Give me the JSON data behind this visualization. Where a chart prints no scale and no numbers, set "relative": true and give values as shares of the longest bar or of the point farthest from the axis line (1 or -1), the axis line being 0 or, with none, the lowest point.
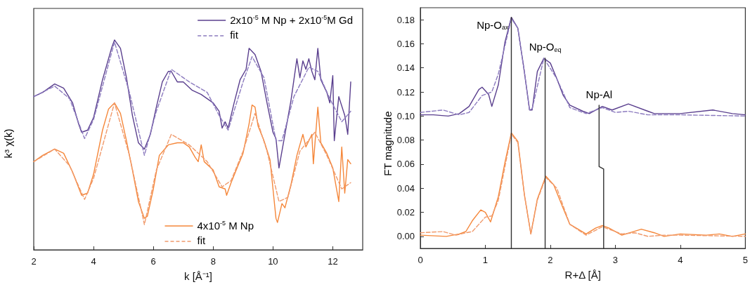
{
  "chart_data": [
    {
      "type": "line",
      "relative": true,
      "xlabel": "k [Å⁻¹]",
      "ylabel": "k³ χ(k)",
      "xlim": [
        2,
        13
      ],
      "xticks": [
        2,
        4,
        6,
        8,
        10,
        12
      ],
      "legend": "top right",
      "marker": "none",
      "series": [
        {
          "name": "2x10$^{-5}$ M Np + 2x10$^{-5}$M Gd",
          "color": "#5a3f8e",
          "line_style": "solid",
          "x": [
            2,
            2.3,
            2.7,
            3.0,
            3.3,
            3.5,
            3.6,
            3.8,
            4.0,
            4.3,
            4.6,
            4.7,
            4.9,
            5.1,
            5.3,
            5.5,
            5.7,
            5.9,
            6.1,
            6.3,
            6.5,
            6.6,
            6.8,
            7.0,
            7.3,
            7.6,
            7.8,
            8.0,
            8.2,
            8.3,
            8.4,
            8.5,
            8.7,
            8.9,
            9.1,
            9.2,
            9.4,
            9.6,
            9.8,
            10.0,
            10.1,
            10.2,
            10.4,
            10.6,
            10.7,
            10.8,
            10.9,
            11.0,
            11.1,
            11.2,
            11.3,
            11.4,
            11.5,
            11.6,
            11.8,
            11.9,
            12.0,
            12.05,
            12.2,
            12.4,
            12.5,
            12.6
          ],
          "values": [
            0.73,
            0.75,
            0.79,
            0.77,
            0.7,
            0.6,
            0.56,
            0.57,
            0.63,
            0.81,
            0.96,
            1.0,
            0.96,
            0.82,
            0.64,
            0.51,
            0.48,
            0.55,
            0.68,
            0.8,
            0.85,
            0.85,
            0.8,
            0.8,
            0.76,
            0.74,
            0.72,
            0.7,
            0.66,
            0.58,
            0.61,
            0.58,
            0.7,
            0.81,
            0.86,
            0.96,
            0.93,
            0.85,
            0.7,
            0.56,
            0.53,
            0.39,
            0.55,
            0.71,
            0.81,
            0.91,
            0.82,
            0.9,
            0.86,
            0.91,
            0.85,
            0.81,
            0.96,
            0.81,
            0.75,
            0.7,
            0.83,
            0.52,
            0.73,
            0.64,
            0.55,
            0.8
          ]
        },
        {
          "name": "fit",
          "color": "#8c7bbf",
          "line_style": "dashed",
          "x": [
            2,
            2.7,
            3.2,
            3.7,
            4.0,
            4.7,
            5.2,
            5.7,
            6.1,
            6.6,
            7.2,
            7.8,
            8.2,
            8.5,
            9.0,
            9.3,
            9.7,
            10.1,
            10.3,
            10.7,
            11.2,
            11.5,
            11.9,
            12.3,
            12.6
          ],
          "values": [
            0.73,
            0.78,
            0.72,
            0.53,
            0.62,
            0.99,
            0.75,
            0.45,
            0.66,
            0.86,
            0.8,
            0.75,
            0.64,
            0.57,
            0.8,
            0.92,
            0.82,
            0.52,
            0.52,
            0.73,
            0.87,
            0.85,
            0.72,
            0.61,
            0.66
          ]
        },
        {
          "name": "4x10$^{-5}$ M Np",
          "color": "#f5873a",
          "line_style": "solid",
          "x": [
            2,
            2.3,
            2.7,
            3.0,
            3.3,
            3.6,
            3.8,
            4.0,
            4.3,
            4.5,
            4.7,
            4.9,
            5.1,
            5.3,
            5.5,
            5.7,
            5.8,
            6.0,
            6.2,
            6.5,
            6.8,
            7.0,
            7.2,
            7.4,
            7.5,
            7.6,
            7.7,
            8.0,
            8.2,
            8.4,
            8.45,
            8.6,
            8.8,
            9.0,
            9.2,
            9.3,
            9.4,
            9.5,
            9.7,
            9.9,
            10.0,
            10.1,
            10.15,
            10.3,
            10.4,
            10.6,
            10.8,
            11.0,
            11.1,
            11.3,
            11.35,
            11.5,
            11.6,
            11.8,
            12.0,
            12.2,
            12.3,
            12.4,
            12.5,
            12.6
          ],
          "values": [
            0.42,
            0.45,
            0.48,
            0.46,
            0.37,
            0.26,
            0.27,
            0.36,
            0.57,
            0.67,
            0.7,
            0.65,
            0.52,
            0.38,
            0.23,
            0.15,
            0.16,
            0.29,
            0.45,
            0.5,
            0.51,
            0.51,
            0.49,
            0.44,
            0.42,
            0.5,
            0.42,
            0.38,
            0.3,
            0.29,
            0.26,
            0.32,
            0.39,
            0.46,
            0.6,
            0.69,
            0.68,
            0.59,
            0.52,
            0.43,
            0.29,
            0.15,
            0.13,
            0.22,
            0.2,
            0.31,
            0.45,
            0.55,
            0.49,
            0.55,
            0.41,
            0.68,
            0.51,
            0.46,
            0.39,
            0.23,
            0.49,
            0.27,
            0.43,
            0.41
          ]
        },
        {
          "name": "fit",
          "color": "#f09a6c",
          "line_style": "dashed",
          "x": [
            2,
            2.7,
            3.2,
            3.7,
            4.0,
            4.7,
            5.2,
            5.7,
            6.1,
            6.6,
            7.2,
            7.8,
            8.3,
            8.6,
            9.0,
            9.4,
            9.8,
            10.2,
            10.5,
            10.9,
            11.4,
            11.8,
            12.3,
            12.6
          ],
          "values": [
            0.42,
            0.48,
            0.4,
            0.24,
            0.34,
            0.7,
            0.45,
            0.12,
            0.38,
            0.55,
            0.5,
            0.42,
            0.3,
            0.33,
            0.47,
            0.65,
            0.47,
            0.23,
            0.25,
            0.47,
            0.56,
            0.45,
            0.29,
            0.32
          ]
        }
      ]
    },
    {
      "type": "line",
      "xlabel": "R+Δ [Å]",
      "ylabel": "FT magnitude",
      "xlim": [
        0,
        5
      ],
      "xticks": [
        0,
        1,
        2,
        3,
        4,
        5
      ],
      "ylim": [
        -0.01,
        0.19
      ],
      "yticks": [
        {
          "value": 0,
          "label": "0.00"
        },
        {
          "value": 0.02,
          "label": "0.02"
        },
        {
          "value": 0.04,
          "label": "0.04"
        },
        {
          "value": 0.06,
          "label": "0.06"
        },
        {
          "value": 0.08,
          "label": "0.08"
        },
        {
          "value": 0.1,
          "label": "0.10"
        },
        {
          "value": 0.12,
          "label": "0.12"
        },
        {
          "value": 0.14,
          "label": "0.14"
        },
        {
          "value": 0.16,
          "label": "0.16"
        },
        {
          "value": 0.18,
          "label": "0.18"
        }
      ],
      "marker": "none",
      "annotations": [
        {
          "text": "Np-O$_{ax}$",
          "x": 1.4,
          "y": 0.182
        },
        {
          "text": "Np-O$_{eq}$",
          "x": 1.92,
          "y": 0.148
        },
        {
          "text": "Np-Al",
          "x": 2.75,
          "y": 0.109
        }
      ],
      "series": [
        {
          "color": "#5a3f8e",
          "line_style": "solid",
          "x": [
            0,
            0.2,
            0.43,
            0.6,
            0.75,
            0.9,
            0.95,
            1.05,
            1.1,
            1.2,
            1.3,
            1.4,
            1.5,
            1.6,
            1.68,
            1.72,
            1.8,
            1.9,
            2.0,
            2.1,
            2.2,
            2.3,
            2.5,
            2.6,
            2.8,
            2.95,
            3.2,
            3.5,
            3.6,
            4.0,
            4.5,
            4.8,
            5.0
          ],
          "values": [
            0.101,
            0.101,
            0.1,
            0.102,
            0.108,
            0.122,
            0.124,
            0.118,
            0.108,
            0.126,
            0.161,
            0.182,
            0.173,
            0.137,
            0.105,
            0.105,
            0.137,
            0.148,
            0.144,
            0.131,
            0.117,
            0.109,
            0.104,
            0.102,
            0.108,
            0.105,
            0.11,
            0.104,
            0.102,
            0.102,
            0.105,
            0.102,
            0.101
          ]
        },
        {
          "color": "#8c7bbf",
          "line_style": "dashed",
          "x": [
            0,
            0.35,
            0.6,
            0.75,
            0.95,
            1.1,
            1.2,
            1.4,
            1.5,
            1.6,
            1.68,
            1.72,
            1.9,
            2.1,
            2.3,
            2.55,
            2.8,
            3.0,
            3.2,
            3.5,
            4.0,
            5.0
          ],
          "values": [
            0.103,
            0.105,
            0.101,
            0.103,
            0.117,
            0.12,
            0.135,
            0.181,
            0.173,
            0.137,
            0.105,
            0.106,
            0.148,
            0.131,
            0.107,
            0.102,
            0.107,
            0.103,
            0.104,
            0.101,
            0.101,
            0.1
          ]
        },
        {
          "color": "#f5873a",
          "line_style": "solid",
          "x": [
            0,
            0.4,
            0.6,
            0.7,
            0.8,
            0.93,
            1.0,
            1.08,
            1.2,
            1.3,
            1.4,
            1.5,
            1.6,
            1.7,
            1.8,
            1.93,
            2.05,
            2.2,
            2.3,
            2.55,
            2.7,
            2.8,
            2.9,
            3.1,
            3.4,
            3.6,
            3.75,
            4.0,
            4.4,
            4.6,
            4.8,
            5.0
          ],
          "values": [
            0.001,
            0.0,
            0.002,
            0.004,
            0.013,
            0.022,
            0.02,
            0.012,
            0.033,
            0.061,
            0.086,
            0.079,
            0.035,
            0.002,
            0.031,
            0.05,
            0.043,
            0.023,
            0.01,
            0.002,
            0.007,
            0.009,
            0.007,
            0.001,
            0.006,
            0.003,
            0.0,
            0.002,
            0.001,
            0.002,
            0.0,
            0.002
          ]
        },
        {
          "color": "#f09a6c",
          "line_style": "dashed",
          "x": [
            0,
            0.35,
            0.55,
            0.7,
            0.8,
            1.0,
            1.1,
            1.2,
            1.4,
            1.5,
            1.6,
            1.7,
            1.8,
            1.93,
            2.1,
            2.3,
            2.55,
            2.8,
            3.1,
            3.3,
            3.5,
            3.75,
            4.0,
            5.0
          ],
          "values": [
            0.003,
            0.004,
            0.001,
            0.003,
            0.004,
            0.016,
            0.017,
            0.03,
            0.085,
            0.078,
            0.035,
            0.002,
            0.03,
            0.049,
            0.04,
            0.01,
            0.001,
            0.008,
            0.002,
            0.003,
            0.0,
            0.001,
            0.001,
            0.0
          ]
        },
        {
          "color": "#333333",
          "line_style": "solid",
          "x": [
            1.4,
            1.4
          ],
          "values": [
            -0.01,
            0.182
          ]
        },
        {
          "color": "#333333",
          "line_style": "solid",
          "x": [
            1.92,
            1.92
          ],
          "values": [
            -0.01,
            0.148
          ]
        },
        {
          "color": "#333333",
          "line_style": "solid",
          "x": [
            2.75,
            2.75,
            2.82,
            2.82
          ],
          "values": [
            0.109,
            0.058,
            0.056,
            -0.01
          ]
        }
      ]
    }
  ]
}
